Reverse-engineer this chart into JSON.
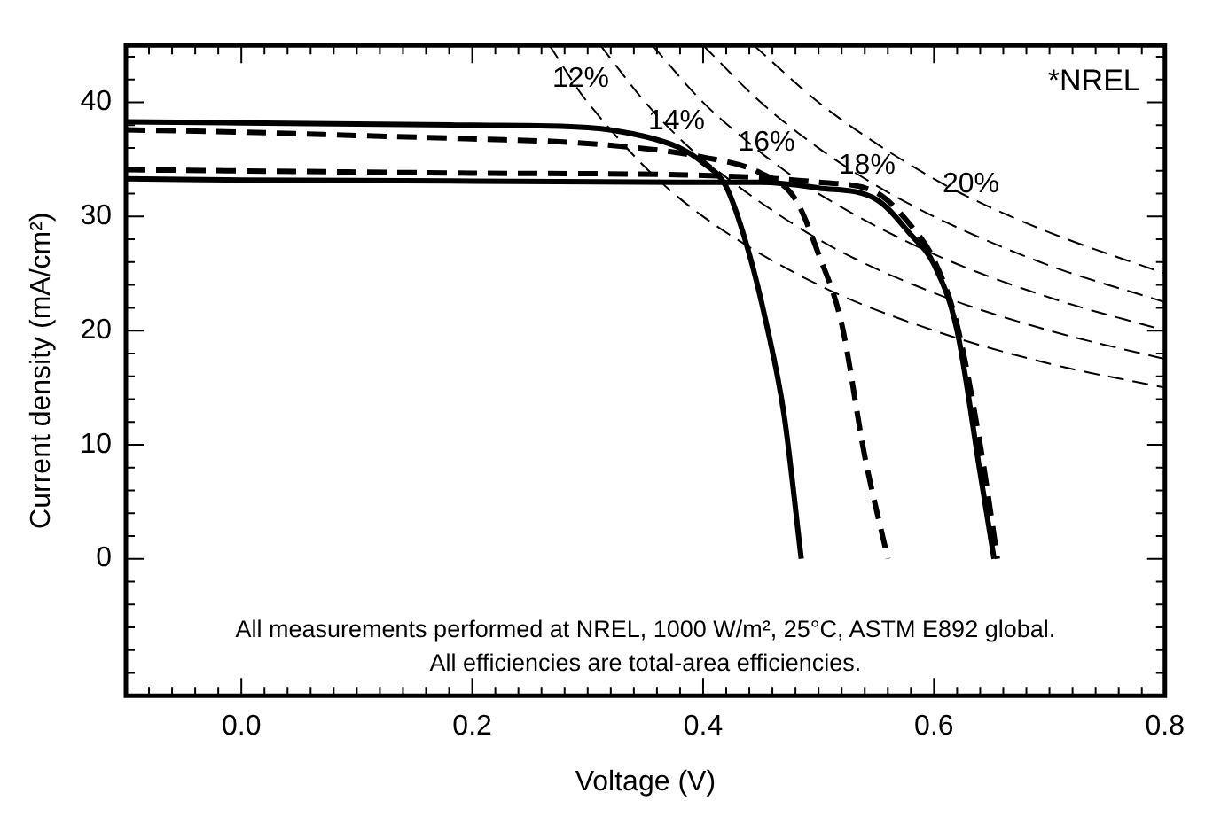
{
  "chart_data": {
    "type": "line",
    "xlabel": "Voltage (V)",
    "ylabel": "Current density (mA/cm²)",
    "xlim": [
      -0.1,
      0.8
    ],
    "ylim": [
      -12,
      45
    ],
    "xticks": [
      {
        "value": -0.08,
        "label": null
      },
      {
        "value": -0.06,
        "label": null
      },
      {
        "value": -0.04,
        "label": null
      },
      {
        "value": -0.02,
        "label": null
      },
      {
        "value": 0,
        "label": "0.0"
      },
      {
        "value": 0.02,
        "label": null
      },
      {
        "value": 0.04,
        "label": null
      },
      {
        "value": 0.06,
        "label": null
      },
      {
        "value": 0.08,
        "label": null
      },
      {
        "value": 0.1,
        "label": null
      },
      {
        "value": 0.12,
        "label": null
      },
      {
        "value": 0.14,
        "label": null
      },
      {
        "value": 0.16,
        "label": null
      },
      {
        "value": 0.18,
        "label": null
      },
      {
        "value": 0.2,
        "label": "0.2"
      },
      {
        "value": 0.22,
        "label": null
      },
      {
        "value": 0.24,
        "label": null
      },
      {
        "value": 0.26,
        "label": null
      },
      {
        "value": 0.28,
        "label": null
      },
      {
        "value": 0.3,
        "label": null
      },
      {
        "value": 0.32,
        "label": null
      },
      {
        "value": 0.34,
        "label": null
      },
      {
        "value": 0.36,
        "label": null
      },
      {
        "value": 0.38,
        "label": null
      },
      {
        "value": 0.4,
        "label": "0.4"
      },
      {
        "value": 0.42,
        "label": null
      },
      {
        "value": 0.44,
        "label": null
      },
      {
        "value": 0.46,
        "label": null
      },
      {
        "value": 0.48,
        "label": null
      },
      {
        "value": 0.5,
        "label": null
      },
      {
        "value": 0.52,
        "label": null
      },
      {
        "value": 0.54,
        "label": null
      },
      {
        "value": 0.56,
        "label": null
      },
      {
        "value": 0.58,
        "label": null
      },
      {
        "value": 0.6,
        "label": "0.6"
      },
      {
        "value": 0.62,
        "label": null
      },
      {
        "value": 0.64,
        "label": null
      },
      {
        "value": 0.66,
        "label": null
      },
      {
        "value": 0.68,
        "label": null
      },
      {
        "value": 0.7,
        "label": null
      },
      {
        "value": 0.72,
        "label": null
      },
      {
        "value": 0.74,
        "label": null
      },
      {
        "value": 0.76,
        "label": null
      },
      {
        "value": 0.78,
        "label": null
      },
      {
        "value": 0.8,
        "label": "0.8"
      }
    ],
    "yticks": [
      {
        "value": -10,
        "label": null
      },
      {
        "value": -8,
        "label": null
      },
      {
        "value": -6,
        "label": null
      },
      {
        "value": -4,
        "label": null
      },
      {
        "value": -2,
        "label": null
      },
      0,
      {
        "value": 2,
        "label": null
      },
      {
        "value": 4,
        "label": null
      },
      {
        "value": 6,
        "label": null
      },
      {
        "value": 8,
        "label": null
      },
      10,
      {
        "value": 12,
        "label": null
      },
      {
        "value": 14,
        "label": null
      },
      {
        "value": 16,
        "label": null
      },
      {
        "value": 18,
        "label": null
      },
      20,
      {
        "value": 22,
        "label": null
      },
      {
        "value": 24,
        "label": null
      },
      {
        "value": 26,
        "label": null
      },
      {
        "value": 28,
        "label": null
      },
      30,
      {
        "value": 32,
        "label": null
      },
      {
        "value": 34,
        "label": null
      },
      {
        "value": 36,
        "label": null
      },
      {
        "value": 38,
        "label": null
      },
      40,
      {
        "value": 42,
        "label": null
      },
      {
        "value": 44,
        "label": null
      }
    ],
    "grid": false,
    "legend": false,
    "marker": "none",
    "series": [
      {
        "color": "#000000",
        "line_style": "solid",
        "x": [
          -0.1,
          0,
          0.1,
          0.2,
          0.3,
          0.35,
          0.38,
          0.4,
          0.42,
          0.44,
          0.455,
          0.47,
          0.485
        ],
        "values": [
          38.3,
          38.2,
          38.1,
          38.0,
          37.8,
          37.0,
          36.0,
          34.7,
          32.6,
          26.7,
          20.5,
          12.7,
          0
        ]
      },
      {
        "color": "#000000",
        "line_style": "solid",
        "x": [
          -0.1,
          0,
          0.2,
          0.4,
          0.45,
          0.5,
          0.55,
          0.58,
          0.6,
          0.62,
          0.64,
          0.652
        ],
        "values": [
          33.3,
          33.2,
          33.1,
          33.0,
          33.0,
          32.5,
          31.5,
          28.4,
          25.8,
          20,
          7.5,
          0
        ]
      },
      {
        "color": "#000000",
        "line_style": "dashed",
        "x": [
          -0.1,
          0,
          0.1,
          0.2,
          0.3,
          0.4,
          0.45,
          0.48,
          0.5,
          0.52,
          0.54,
          0.56
        ],
        "values": [
          37.6,
          37.4,
          37.1,
          36.8,
          36.4,
          35.2,
          33.8,
          31.5,
          26.7,
          20.6,
          9,
          0
        ]
      },
      {
        "color": "#000000",
        "line_style": "dashed",
        "x": [
          -0.1,
          0,
          0.2,
          0.4,
          0.5,
          0.55,
          0.58,
          0.6,
          0.62,
          0.64,
          0.655
        ],
        "values": [
          34.1,
          34.0,
          33.8,
          33.6,
          33.0,
          32.1,
          29.2,
          26.2,
          20.5,
          10,
          0
        ]
      },
      {
        "color": "#000000",
        "line_style": "dashed",
        "x": [
          0.267,
          0.294,
          0.3,
          0.35,
          0.4,
          0.5,
          0.6,
          0.7,
          0.8
        ],
        "values": [
          45,
          40.8,
          40,
          34.3,
          30,
          24,
          20,
          17.1,
          15
        ]
      },
      {
        "color": "#000000",
        "line_style": "dashed",
        "x": [
          0.311,
          0.35,
          0.377,
          0.4,
          0.5,
          0.6,
          0.7,
          0.8
        ],
        "values": [
          45,
          40,
          37.1,
          35,
          28,
          23.3,
          20,
          17.5
        ]
      },
      {
        "color": "#000000",
        "line_style": "dashed",
        "x": [
          0.356,
          0.4,
          0.45,
          0.455,
          0.5,
          0.6,
          0.7,
          0.8
        ],
        "values": [
          45,
          40,
          35.6,
          35.2,
          32,
          26.7,
          22.9,
          20
        ]
      },
      {
        "color": "#000000",
        "line_style": "dashed",
        "x": [
          0.4,
          0.45,
          0.5,
          0.542,
          0.6,
          0.7,
          0.8
        ],
        "values": [
          45,
          40,
          36,
          33.2,
          30,
          25.7,
          22.5
        ]
      },
      {
        "color": "#000000",
        "line_style": "dashed",
        "x": [
          0.444,
          0.5,
          0.55,
          0.6,
          0.632,
          0.7,
          0.8
        ],
        "values": [
          45,
          40,
          36.4,
          33.3,
          31.6,
          28.6,
          25
        ]
      }
    ],
    "annotations": [
      "*NREL",
      "All measurements performed at NREL, 1000 W/m², 25°C, ASTM E892 global.",
      "All efficiencies are total-area efficiencies.",
      {
        "text": "12%",
        "x": 0.294,
        "y": 40.8
      },
      {
        "text": "14%",
        "x": 0.377,
        "y": 37.1
      },
      {
        "text": "16%",
        "x": 0.455,
        "y": 35.2
      },
      {
        "text": "18%",
        "x": 0.542,
        "y": 33.2
      },
      {
        "text": "20%",
        "x": 0.632,
        "y": 31.6
      }
    ]
  }
}
